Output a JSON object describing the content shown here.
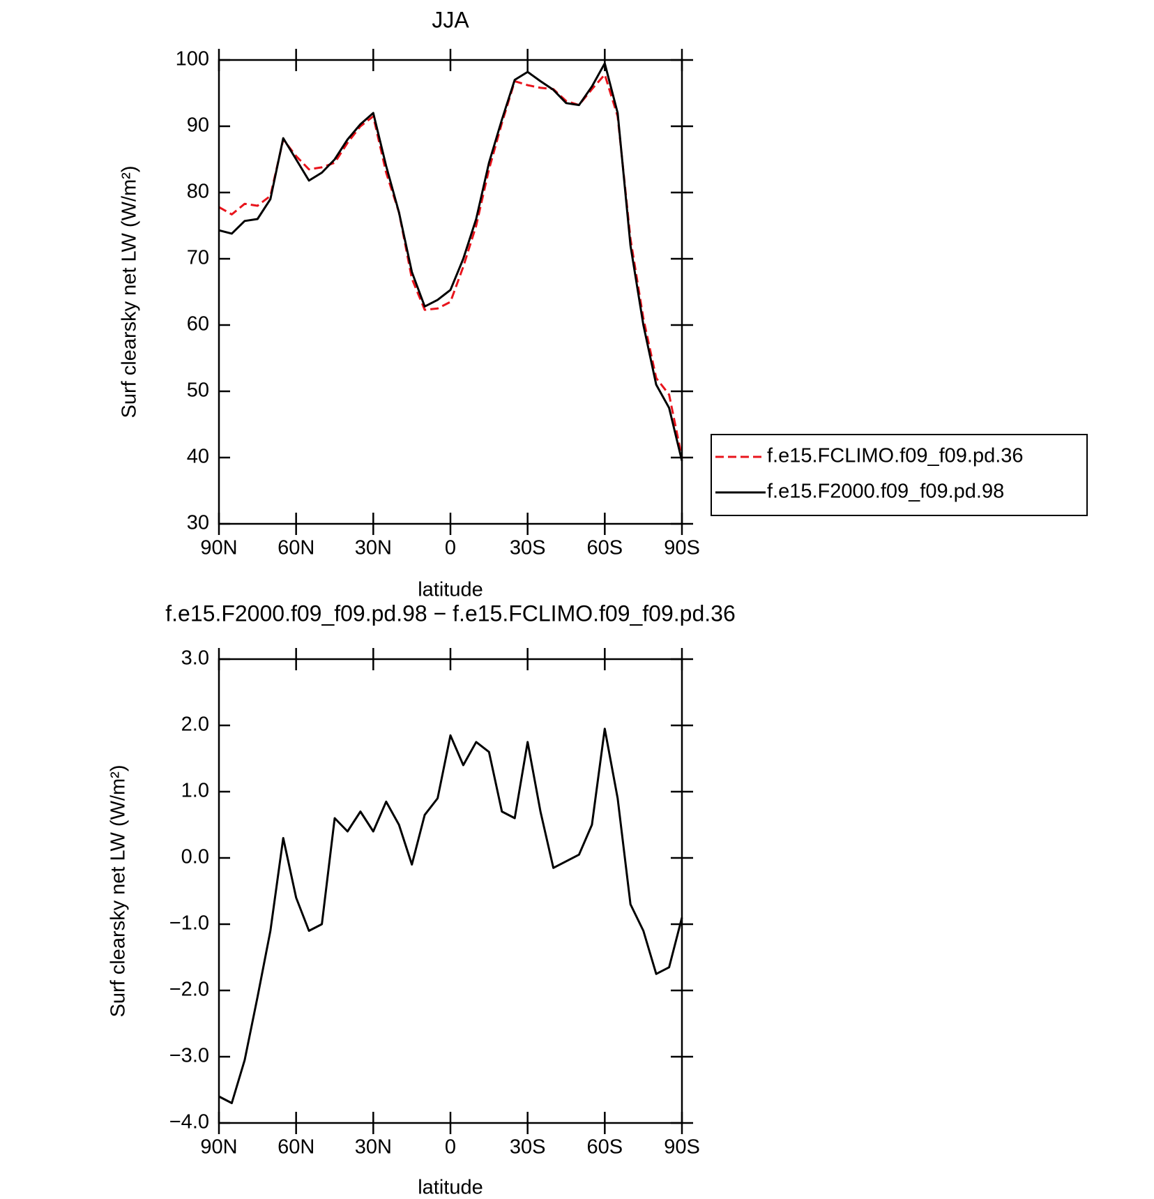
{
  "chart_data": [
    {
      "type": "line",
      "title": "JJA",
      "xlabel": "latitude",
      "ylabel": "Surf clearsky net LW (W/m²)",
      "x": [
        90,
        85,
        80,
        75,
        70,
        65,
        60,
        55,
        50,
        45,
        40,
        35,
        30,
        25,
        20,
        15,
        10,
        5,
        0,
        -5,
        -10,
        -15,
        -20,
        -25,
        -30,
        -35,
        -40,
        -45,
        -50,
        -55,
        -60,
        -65,
        -70,
        -75,
        -80,
        -85,
        -90
      ],
      "xlim": [
        90,
        -90
      ],
      "xticks": [
        {
          "value": 90,
          "label": "90N"
        },
        {
          "value": 60,
          "label": "60N"
        },
        {
          "value": 30,
          "label": "30N"
        },
        0,
        {
          "value": -30,
          "label": "30S"
        },
        {
          "value": -60,
          "label": "60S"
        },
        {
          "value": -90,
          "label": "90S"
        }
      ],
      "ylim": [
        30,
        100
      ],
      "yticks": [
        30,
        40,
        50,
        60,
        70,
        80,
        90,
        100
      ],
      "legend": "right",
      "series": [
        {
          "name": "f.e15.FCLIMO.f09_f09.pd.36",
          "color": "#e8141c",
          "dashed": true,
          "values": [
            77.8,
            76.7,
            78.3,
            78,
            79.5,
            88,
            85.5,
            83.5,
            83.8,
            84.5,
            87.5,
            90,
            91.5,
            83,
            77,
            67,
            62.3,
            62.5,
            63.5,
            68.8,
            75,
            83.5,
            90.5,
            96.8,
            96.2,
            95.8,
            95.6,
            93.8,
            93.2,
            95.6,
            97.8,
            91.5,
            73,
            61,
            52,
            49.5,
            40
          ]
        },
        {
          "name": "f.e15.F2000.f09_f09.pd.98",
          "color": "#000000",
          "dashed": false,
          "values": [
            74.3,
            73.8,
            75.7,
            76,
            79,
            88.2,
            85,
            81.8,
            83,
            85,
            88,
            90.3,
            92,
            84,
            77,
            68,
            62.8,
            63.8,
            65.3,
            70,
            76,
            84.5,
            91,
            97,
            98.2,
            96.8,
            95.5,
            93.5,
            93.2,
            96,
            99.5,
            92,
            72,
            60,
            51,
            47.5,
            39.5
          ]
        }
      ]
    },
    {
      "type": "line",
      "title": "f.e15.F2000.f09_f09.pd.98 − f.e15.FCLIMO.f09_f09.pd.36",
      "xlabel": "latitude",
      "ylabel": "Surf clearsky net LW (W/m²)",
      "x": [
        90,
        85,
        80,
        75,
        70,
        65,
        60,
        55,
        50,
        45,
        40,
        35,
        30,
        25,
        20,
        15,
        10,
        5,
        0,
        -5,
        -10,
        -15,
        -20,
        -25,
        -30,
        -35,
        -40,
        -45,
        -50,
        -55,
        -60,
        -65,
        -70,
        -75,
        -80,
        -85,
        -90
      ],
      "xlim": [
        90,
        -90
      ],
      "xticks": [
        {
          "value": 90,
          "label": "90N"
        },
        {
          "value": 60,
          "label": "60N"
        },
        {
          "value": 30,
          "label": "30N"
        },
        0,
        {
          "value": -30,
          "label": "30S"
        },
        {
          "value": -60,
          "label": "60S"
        },
        {
          "value": -90,
          "label": "90S"
        }
      ],
      "ylim": [
        -4,
        3
      ],
      "yticks": [
        {
          "value": -4,
          "label": "−4.0"
        },
        {
          "value": -3,
          "label": "−3.0"
        },
        {
          "value": -2,
          "label": "−2.0"
        },
        {
          "value": -1,
          "label": "−1.0"
        },
        {
          "value": 0,
          "label": "0.0"
        },
        {
          "value": 1,
          "label": "1.0"
        },
        {
          "value": 2,
          "label": "2.0"
        },
        {
          "value": 3,
          "label": "3.0"
        }
      ],
      "series": [
        {
          "color": "#000000",
          "dashed": false,
          "values": [
            -3.6,
            -3.7,
            -3.05,
            -2.1,
            -1.1,
            0.3,
            -0.6,
            -1.1,
            -1.0,
            0.6,
            0.4,
            0.7,
            0.4,
            0.85,
            0.5,
            -0.1,
            0.65,
            0.9,
            1.85,
            1.4,
            1.75,
            1.6,
            0.7,
            0.6,
            1.75,
            0.7,
            -0.15,
            -0.05,
            0.05,
            0.5,
            1.95,
            0.9,
            -0.7,
            -1.1,
            -1.75,
            -1.65,
            -0.9
          ]
        }
      ]
    }
  ]
}
